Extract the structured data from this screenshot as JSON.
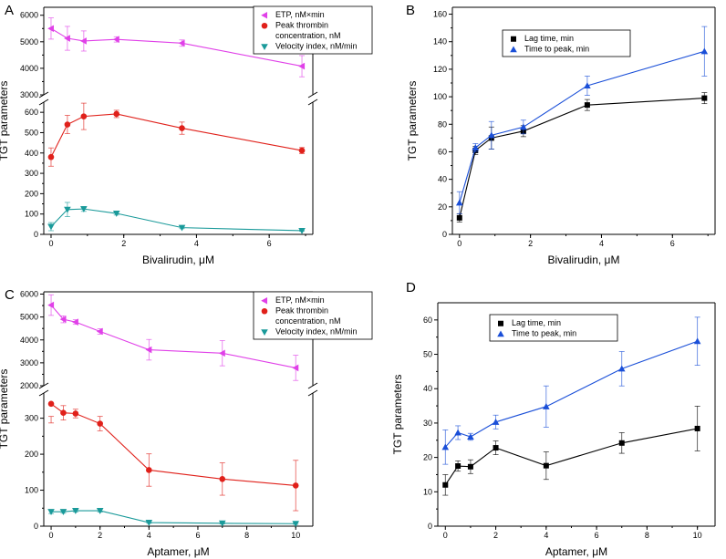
{
  "figure": {
    "yaxis_label": "TGT parameters"
  },
  "chart_data": [
    {
      "panel": "A",
      "type": "line",
      "broken_y_axis": true,
      "xlabel_text": "Bivalirudin, ",
      "xlabel_unit": "μM",
      "ylabel": "TGT parameters",
      "xlim": [
        -0.2,
        7.2
      ],
      "xticks": [
        0,
        2,
        4,
        6
      ],
      "ylim_lower": [
        0,
        650
      ],
      "ylim_upper": [
        3000,
        6300
      ],
      "yticks_lower": [
        0,
        100,
        200,
        300,
        400,
        500,
        600
      ],
      "yticks_upper": [
        3000,
        4000,
        5000,
        6000
      ],
      "legend": "top-right",
      "series": [
        {
          "name": "ETP, nM×min",
          "name_lines": [
            "ETP, nM×min"
          ],
          "color": "#e040e8",
          "marker": "triangle-left",
          "x": [
            0,
            0.45,
            0.9,
            1.8,
            3.6,
            6.9
          ],
          "values": [
            5500,
            5130,
            5030,
            5090,
            4950,
            4080
          ],
          "errors": [
            400,
            450,
            380,
            100,
            120,
            400
          ]
        },
        {
          "name": "Peak thrombin concentration, nM",
          "name_lines": [
            "Peak thrombin",
            "concentration, nM"
          ],
          "color": "#e0201a",
          "marker": "circle",
          "x": [
            0,
            0.45,
            0.9,
            1.8,
            3.6,
            6.9
          ],
          "values": [
            380,
            540,
            580,
            592,
            522,
            412
          ],
          "errors": [
            45,
            45,
            65,
            18,
            30,
            15
          ]
        },
        {
          "name": "Velocity index, nM/min",
          "name_lines": [
            "Velocity index, nM/min"
          ],
          "color": "#1a9a9a",
          "marker": "triangle-down",
          "x": [
            0,
            0.45,
            0.9,
            1.8,
            3.6,
            6.9
          ],
          "values": [
            38,
            122,
            125,
            103,
            33,
            18
          ],
          "errors": [
            20,
            35,
            12,
            8,
            5,
            3
          ]
        }
      ]
    },
    {
      "panel": "B",
      "type": "line",
      "broken_y_axis": false,
      "xlabel_text": "Bivalirudin, ",
      "xlabel_unit": "μM",
      "ylabel": "TGT parameters",
      "xlim": [
        -0.2,
        7.2
      ],
      "xticks": [
        0,
        2,
        4,
        6
      ],
      "ylim": [
        0,
        165
      ],
      "yticks": [
        0,
        20,
        40,
        60,
        80,
        100,
        120,
        140,
        160
      ],
      "legend": "top-left",
      "series": [
        {
          "name": "Lag time, min",
          "name_lines": [
            "Lag time, min"
          ],
          "color": "#000000",
          "marker": "square",
          "x": [
            0,
            0.45,
            0.9,
            1.8,
            3.6,
            6.9
          ],
          "values": [
            12,
            61,
            70,
            75,
            94,
            99
          ],
          "errors": [
            3,
            3,
            8,
            4,
            4,
            4
          ]
        },
        {
          "name": "Time to peak, min",
          "name_lines": [
            "Time to peak, min"
          ],
          "color": "#1a4fd8",
          "marker": "triangle-up",
          "x": [
            0,
            0.45,
            0.9,
            1.8,
            3.6,
            6.9
          ],
          "values": [
            23,
            63,
            72,
            78,
            108,
            133
          ],
          "errors": [
            8,
            3,
            10,
            5,
            7,
            18
          ]
        }
      ]
    },
    {
      "panel": "C",
      "type": "line",
      "broken_y_axis": true,
      "xlabel_text": "Aptamer, ",
      "xlabel_unit": "μM",
      "ylabel": "TGT parameters",
      "xlim": [
        -0.3,
        10.7
      ],
      "xticks": [
        0,
        2,
        4,
        6,
        8,
        10
      ],
      "ylim_lower": [
        0,
        370
      ],
      "ylim_upper": [
        2000,
        6100
      ],
      "yticks_lower": [
        0,
        100,
        200,
        300
      ],
      "yticks_upper": [
        2000,
        3000,
        4000,
        5000,
        6000
      ],
      "legend": "top-right",
      "series": [
        {
          "name": "ETP, nM×min",
          "name_lines": [
            "ETP, nM×min"
          ],
          "color": "#e040e8",
          "marker": "triangle-left",
          "x": [
            0,
            0.5,
            1,
            2,
            4,
            7,
            10
          ],
          "values": [
            5520,
            4900,
            4780,
            4370,
            3570,
            3420,
            2780
          ],
          "errors": [
            450,
            150,
            100,
            120,
            450,
            550,
            550
          ]
        },
        {
          "name": "Peak thrombin concentration, nM",
          "name_lines": [
            "Peak thrombin",
            "concentration, nM"
          ],
          "color": "#e0201a",
          "marker": "circle",
          "x": [
            0,
            0.5,
            1,
            2,
            4,
            7,
            10
          ],
          "values": [
            340,
            315,
            313,
            285,
            156,
            131,
            113
          ],
          "errors": [
            35,
            20,
            12,
            20,
            45,
            45,
            70
          ]
        },
        {
          "name": "Velocity index, nM/min",
          "name_lines": [
            "Velocity index, nM/min"
          ],
          "color": "#1a9a9a",
          "marker": "triangle-down",
          "x": [
            0,
            0.5,
            1,
            2,
            4,
            7,
            10
          ],
          "values": [
            40,
            40,
            43,
            43,
            10,
            8,
            7
          ],
          "errors": [
            5,
            4,
            4,
            4,
            2,
            2,
            2
          ]
        }
      ]
    },
    {
      "panel": "D",
      "type": "line",
      "broken_y_axis": false,
      "xlabel_text": "Aptamer, ",
      "xlabel_unit": "μM",
      "ylabel": "TGT parameters",
      "xlim": [
        -0.3,
        10.7
      ],
      "xticks": [
        0,
        2,
        4,
        6,
        8,
        10
      ],
      "ylim": [
        0,
        65
      ],
      "yticks": [
        0,
        10,
        20,
        30,
        40,
        50,
        60
      ],
      "legend": "top-left",
      "series": [
        {
          "name": "Lag time, min",
          "name_lines": [
            "Lag time, min"
          ],
          "color": "#000000",
          "marker": "square",
          "x": [
            0,
            0.5,
            1,
            2,
            4,
            7,
            10
          ],
          "values": [
            12,
            17.5,
            17.3,
            22.8,
            17.6,
            24.2,
            28.4
          ],
          "errors": [
            3,
            1.5,
            2,
            2,
            4,
            3,
            6.5
          ]
        },
        {
          "name": "Time to peak, min",
          "name_lines": [
            "Time to peak, min"
          ],
          "color": "#1a4fd8",
          "marker": "triangle-up",
          "x": [
            0,
            0.5,
            1,
            2,
            4,
            7,
            10
          ],
          "values": [
            23,
            27.2,
            26,
            30.3,
            34.8,
            45.8,
            53.8
          ],
          "errors": [
            5,
            2,
            1,
            2,
            6,
            5,
            7
          ]
        }
      ]
    }
  ]
}
